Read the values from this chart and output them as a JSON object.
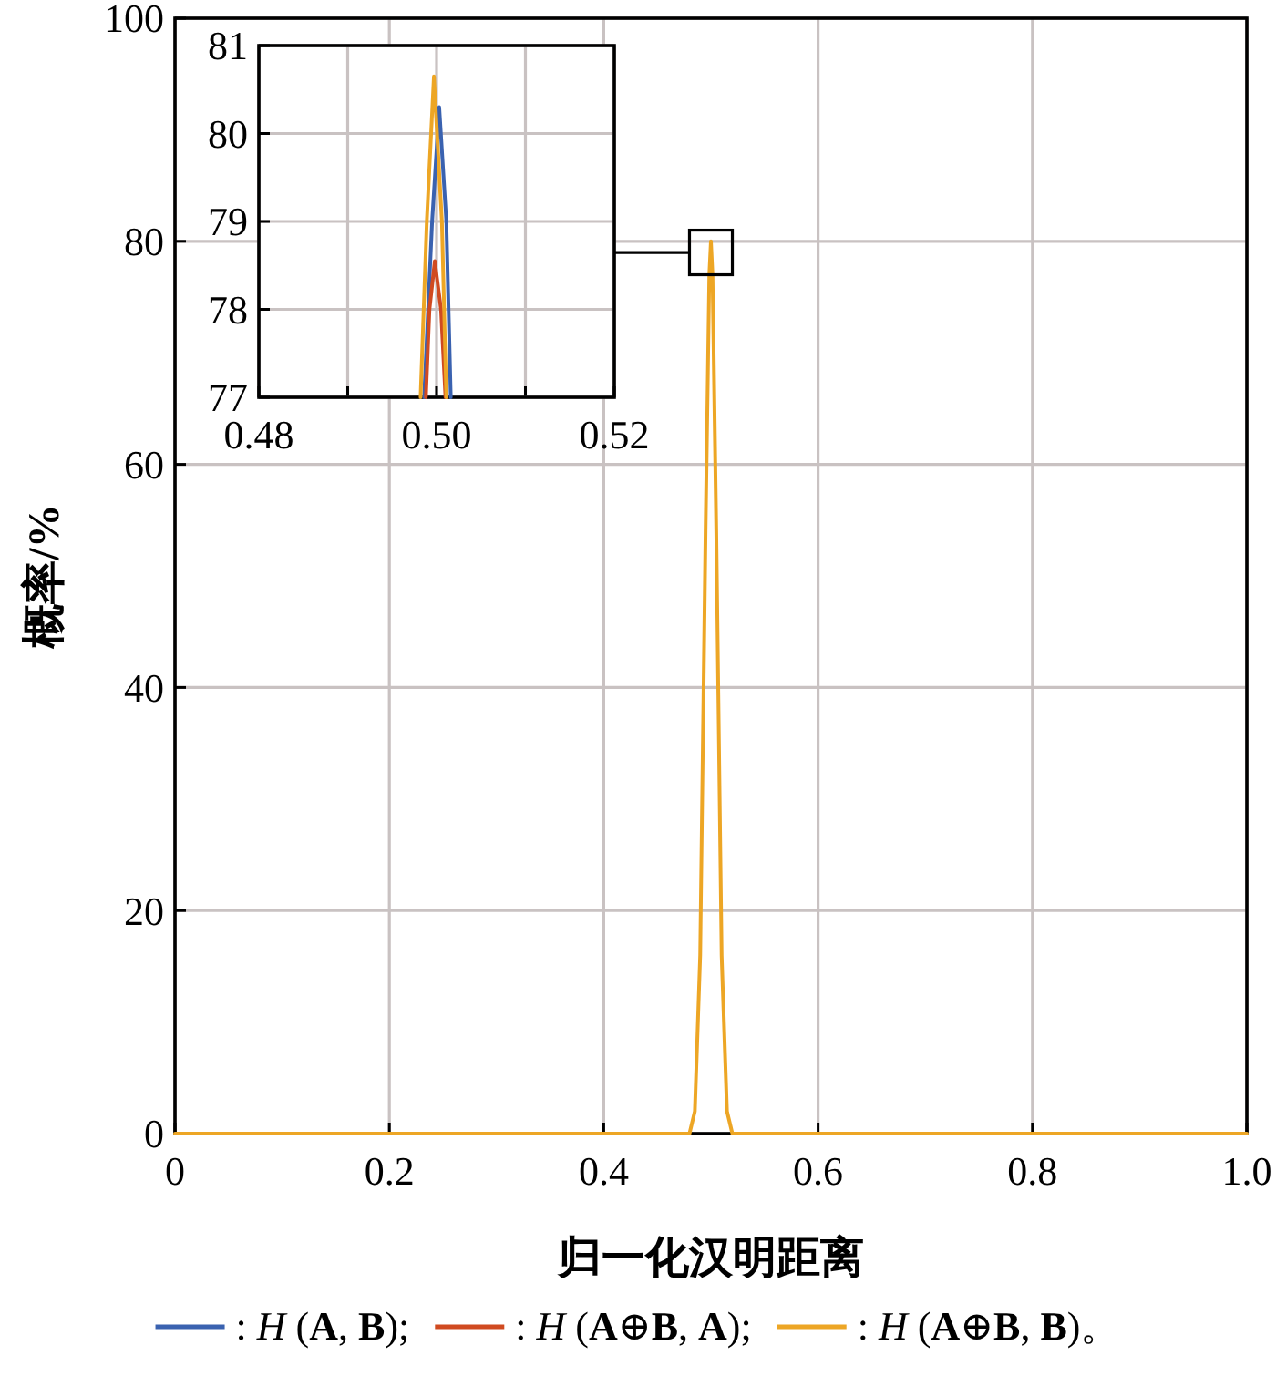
{
  "chart_data": [
    {
      "type": "line",
      "xlabel": "归一化汉明距离",
      "ylabel": "概率/%",
      "xlim": [
        0,
        1
      ],
      "ylim": [
        0,
        100
      ],
      "xticks": [
        0,
        0.2,
        0.4,
        0.6,
        0.8,
        {
          "value": 1,
          "label": "1.0"
        }
      ],
      "yticks": [
        0,
        20,
        40,
        60,
        80,
        100
      ],
      "grid": true,
      "series": [
        {
          "color": "#eda625",
          "x": [
            0,
            0.47,
            0.48,
            0.485,
            0.49,
            0.495,
            0.4985,
            0.5,
            0.5015,
            0.505,
            0.51,
            0.515,
            0.52,
            0.53,
            1
          ],
          "values": [
            0,
            0,
            0,
            2,
            16,
            54,
            77,
            80,
            77,
            54,
            16,
            2,
            0,
            0,
            0
          ]
        }
      ]
    },
    {
      "type": "line",
      "xlim": [
        0.48,
        0.52
      ],
      "ylim": [
        77,
        81
      ],
      "legend": "bottom",
      "xticks": [
        {
          "value": 0.48,
          "label": "0.48"
        },
        {
          "value": 0.49,
          "label": null
        },
        {
          "value": 0.5,
          "label": "0.50"
        },
        {
          "value": 0.51,
          "label": null
        },
        {
          "value": 0.52,
          "label": "0.52"
        }
      ],
      "yticks": [
        77,
        78,
        79,
        80,
        81
      ],
      "grid": true,
      "series": [
        {
          "name": ": *H* (**A**, **B**);",
          "color": "#3a62b0",
          "x": [
            0.4986,
            0.4995,
            0.5003,
            0.5011,
            0.5016
          ],
          "values": [
            77,
            79,
            80.3,
            79,
            77
          ]
        },
        {
          "name": ": *H* (**A**⊕**B**, **A**);",
          "color": "#d04a20",
          "x": [
            0.4988,
            0.4992,
            0.4998,
            0.5005,
            0.501
          ],
          "values": [
            77,
            78,
            78.55,
            78,
            77
          ]
        },
        {
          "name": ": *H* (**A**⊕**B**, **B**)。",
          "color": "#eda625",
          "x": [
            0.4982,
            0.4989,
            0.4997,
            0.5006,
            0.5011
          ],
          "values": [
            77,
            79,
            80.65,
            79,
            77
          ]
        }
      ]
    }
  ]
}
